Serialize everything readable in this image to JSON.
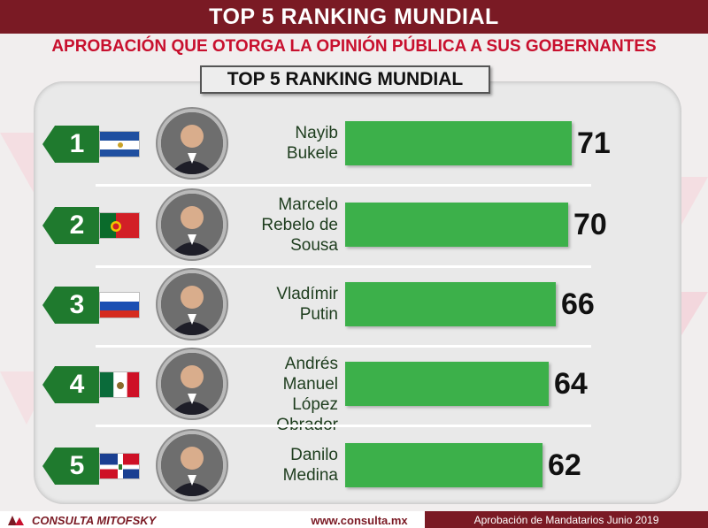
{
  "header": {
    "title": "TOP 5 RANKING MUNDIAL",
    "subtitle": "APROBACIÓN QUE OTORGA LA OPINIÓN PÚBLICA A SUS GOBERNANTES"
  },
  "panel": {
    "title": "TOP 5 RANKING MUNDIAL"
  },
  "colors": {
    "banner": "#7a1a24",
    "subtitle": "#c8102e",
    "bar": "#3cb04a",
    "rank_badge": "#1f7a2e"
  },
  "chart_data": {
    "type": "bar",
    "orientation": "horizontal",
    "title": "TOP 5 RANKING MUNDIAL",
    "categories": [
      "Nayib Bukele",
      "Marcelo Rebelo de Sousa",
      "Vladímir Putin",
      "Andrés Manuel López Obrador",
      "Danilo Medina"
    ],
    "values": [
      71,
      70,
      66,
      64,
      62
    ],
    "legend": "none",
    "grid": false,
    "rows": [
      {
        "rank": "1",
        "name_lines": [
          "Nayib",
          "Bukele"
        ],
        "value": 71,
        "flag": "el-salvador-flag-icon",
        "value_label": "71"
      },
      {
        "rank": "2",
        "name_lines": [
          "Marcelo",
          "Rebelo de",
          "Sousa"
        ],
        "value": 70,
        "flag": "portugal-flag-icon",
        "value_label": "70"
      },
      {
        "rank": "3",
        "name_lines": [
          "Vladímir",
          "Putin"
        ],
        "value": 66,
        "flag": "russia-flag-icon",
        "value_label": "66"
      },
      {
        "rank": "4",
        "name_lines": [
          "Andrés",
          "Manuel",
          "López Obrador"
        ],
        "value": 64,
        "flag": "mexico-flag-icon",
        "value_label": "64"
      },
      {
        "rank": "5",
        "name_lines": [
          "Danilo",
          "Medina"
        ],
        "value": 62,
        "flag": "dominican-republic-flag-icon",
        "value_label": "62"
      }
    ]
  },
  "footer": {
    "brand": "CONSULTA MITOFSKY",
    "url": "www.consulta.mx",
    "caption": "Aprobación de Mandatarios Junio 2019"
  }
}
